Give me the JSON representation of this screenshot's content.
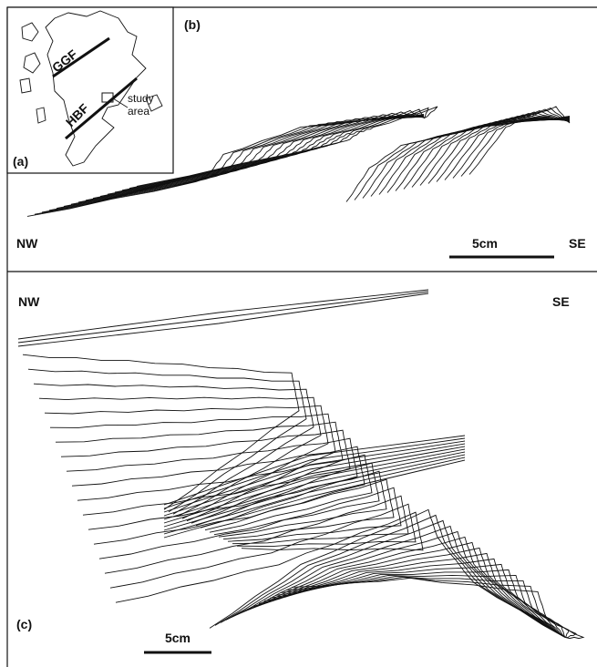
{
  "panels": {
    "a": {
      "label": "(a)",
      "faults": [
        "GGF",
        "HBF"
      ],
      "study_area": [
        "study",
        "area"
      ]
    },
    "b": {
      "label": "(b)",
      "left": "NW",
      "right": "SE",
      "scale": "5cm"
    },
    "c": {
      "label": "(c)",
      "left": "NW",
      "right": "SE",
      "scale": "5cm"
    }
  }
}
